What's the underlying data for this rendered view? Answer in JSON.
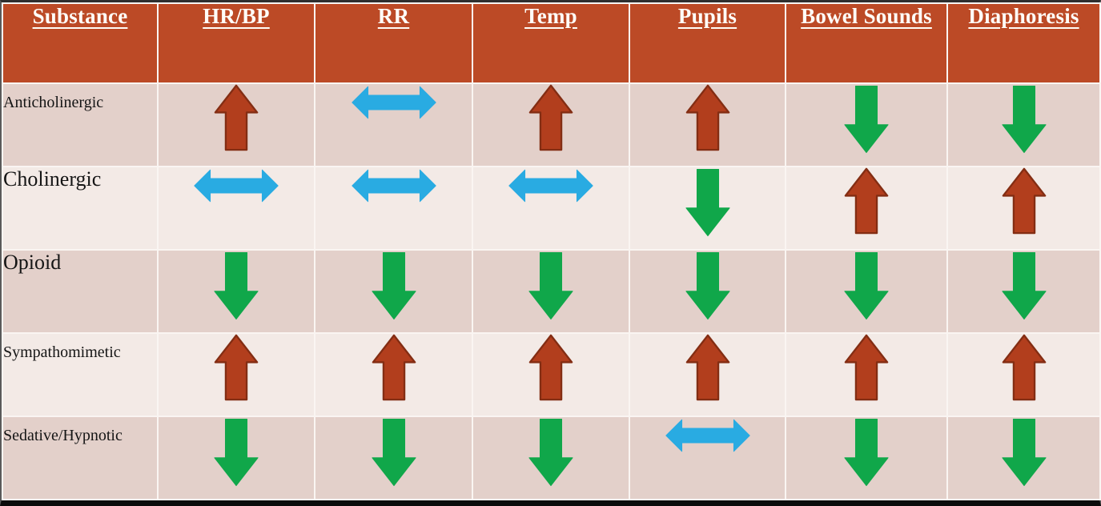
{
  "title": "Toxidrome vital sign findings table",
  "colors": {
    "header_bg": "#bc4a26",
    "header_text": "#fffdf8",
    "row_dark": "#e3d0ca",
    "row_light": "#f3eae6",
    "label_text": "#151515",
    "arrow_up_fill": "#b23e1d",
    "arrow_up_stroke": "#832d13",
    "arrow_down_fill": "#10a74a",
    "arrow_both_fill": "#29abe2",
    "separator": "#faf5f2",
    "top_border": "#2f2f2f",
    "bottom_border": "#0b0b0b"
  },
  "table": {
    "columns": [
      "Substance",
      "HR/BP",
      "RR",
      "Temp",
      "Pupils",
      "Bowel Sounds",
      "Diaphoresis"
    ],
    "rows": [
      {
        "label": "Anticholinergic",
        "cells": [
          "up",
          "both",
          "up",
          "up",
          "down",
          "down"
        ]
      },
      {
        "label": "Cholinergic",
        "cells": [
          "both",
          "both",
          "both",
          "down",
          "up",
          "up"
        ]
      },
      {
        "label": "Opioid",
        "cells": [
          "down",
          "down",
          "down",
          "down",
          "down",
          "down"
        ]
      },
      {
        "label": "Sympathomimetic",
        "cells": [
          "up",
          "up",
          "up",
          "up",
          "up",
          "up"
        ]
      },
      {
        "label": "Sedative/Hypnotic",
        "cells": [
          "down",
          "down",
          "down",
          "both",
          "down",
          "down"
        ]
      }
    ],
    "icon_meaning": {
      "up": "up-arrow",
      "down": "down-arrow",
      "both": "left-right-arrow"
    }
  }
}
